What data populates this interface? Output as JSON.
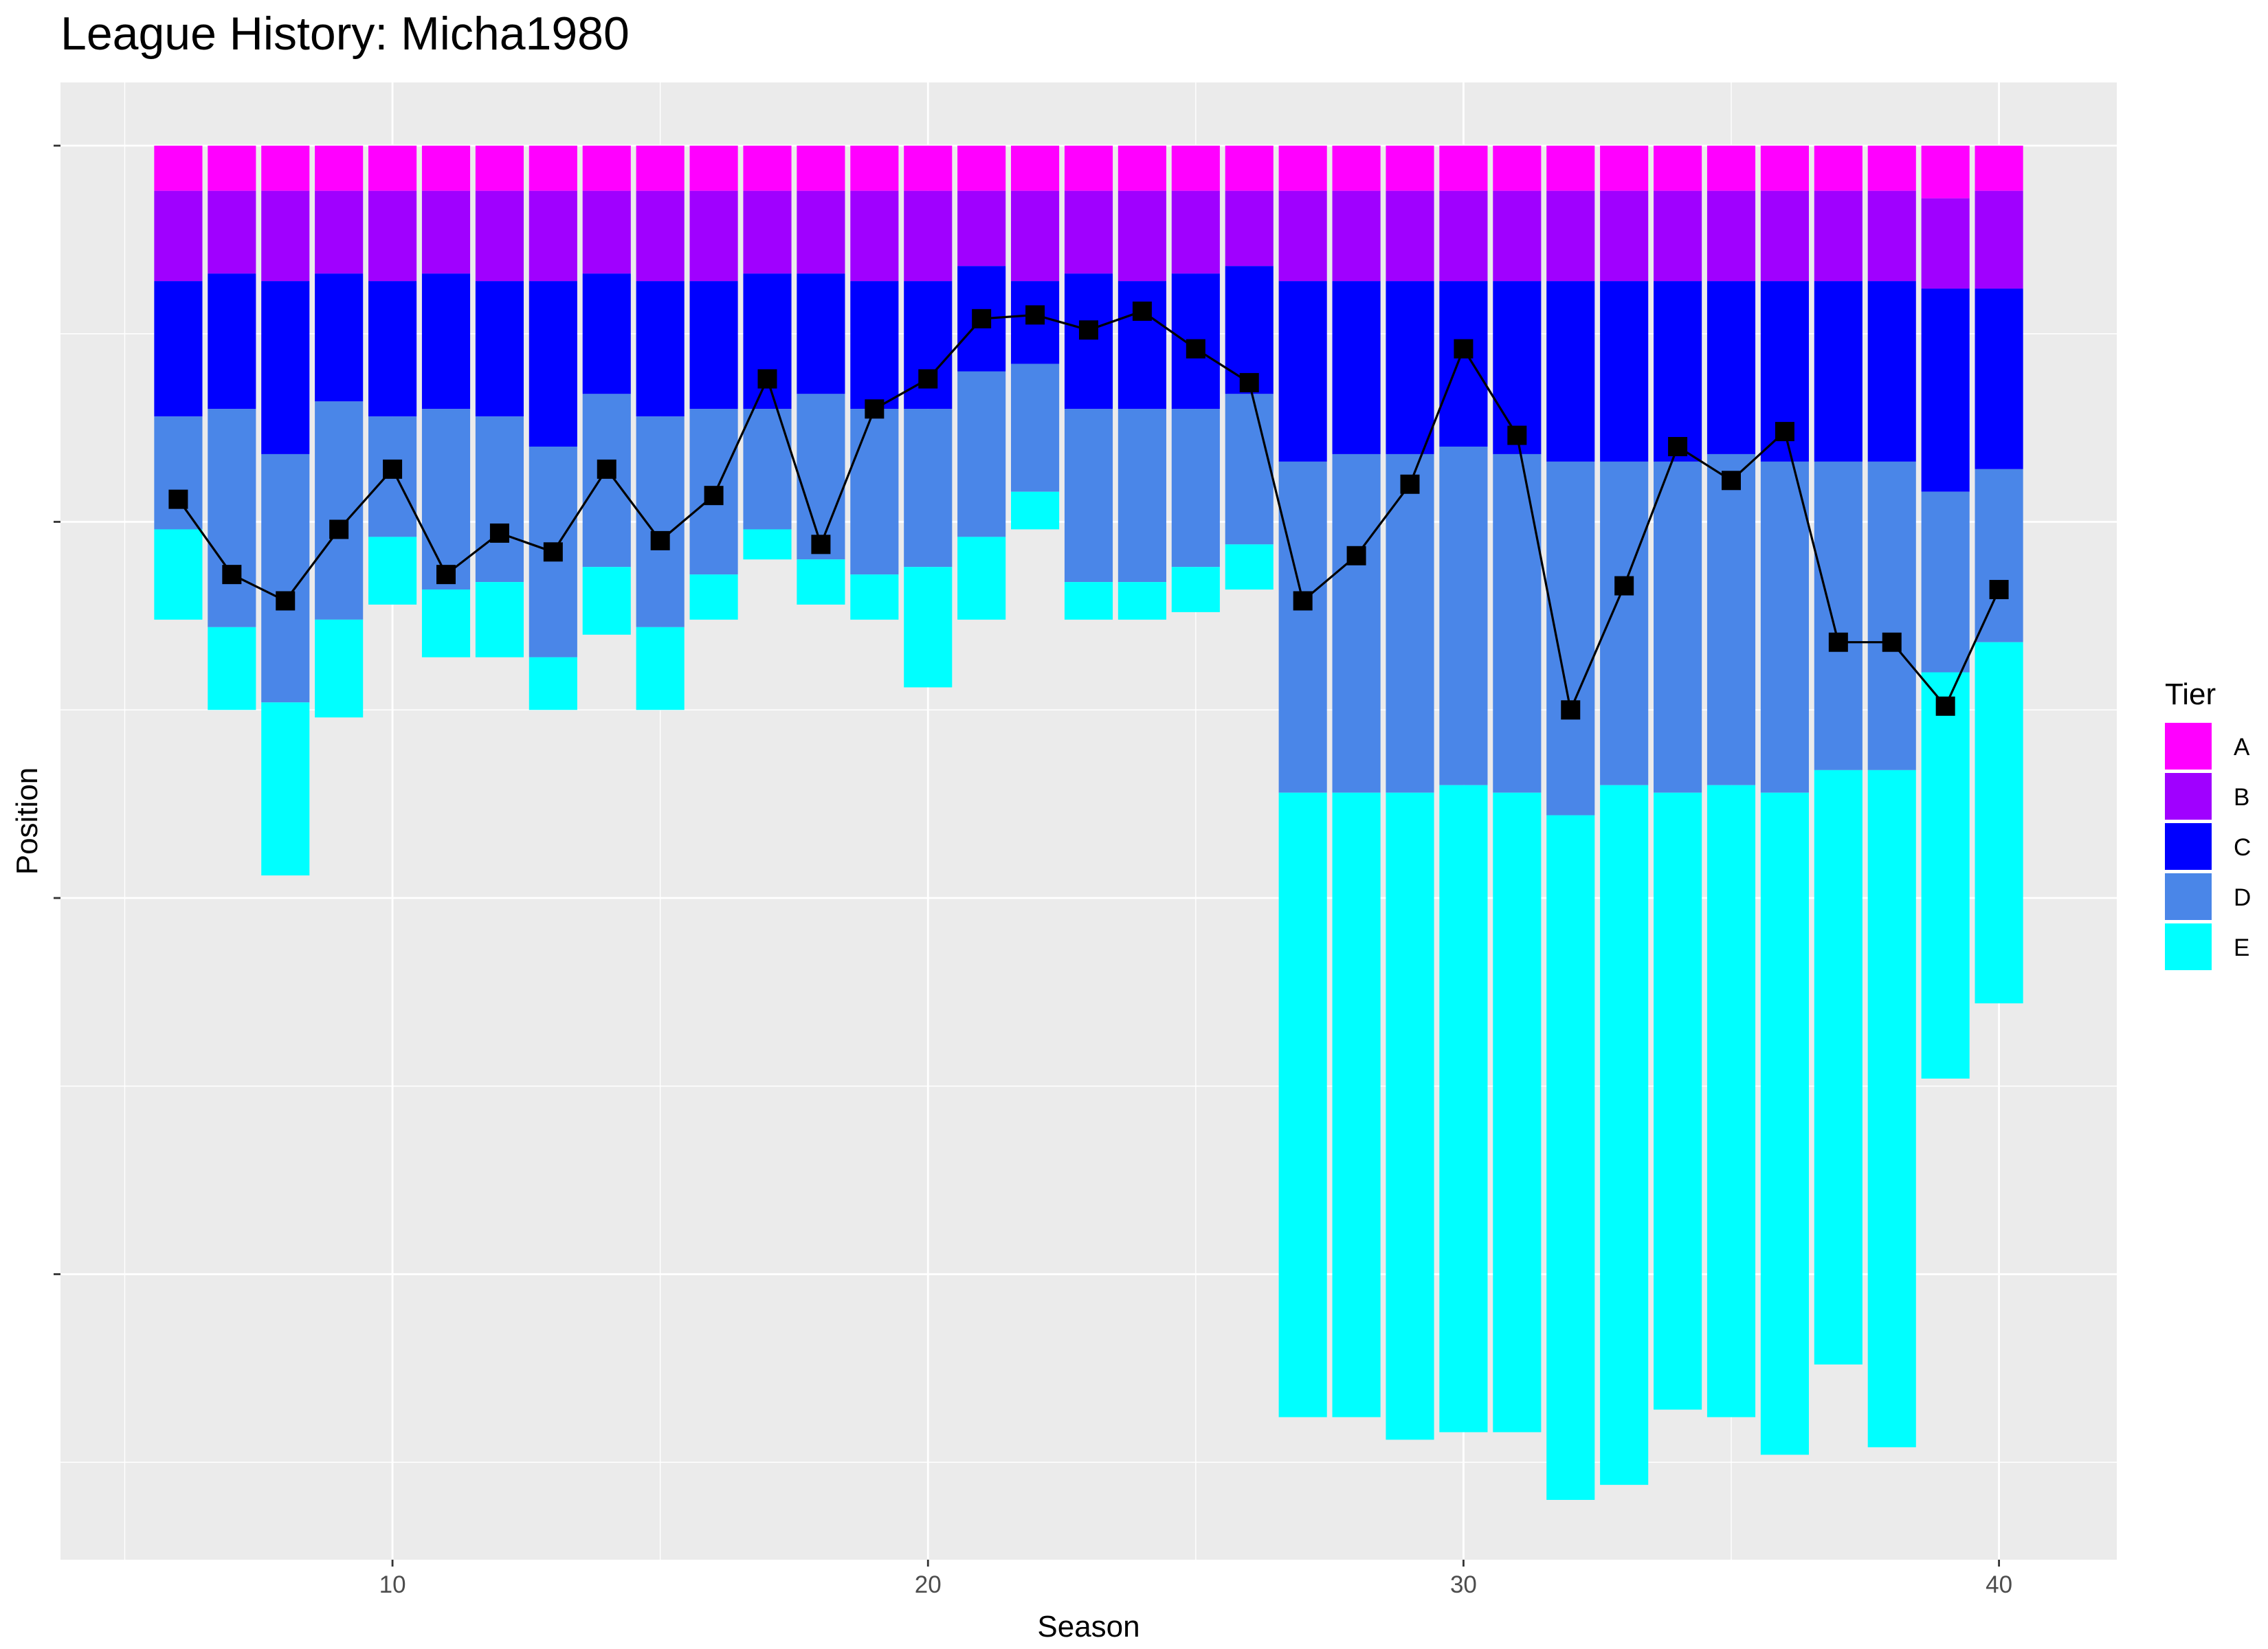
{
  "chart_data": {
    "type": "bar",
    "title": "League History: Micha1980",
    "xlabel": "Season",
    "ylabel": "Position",
    "x_ticks": [
      10,
      20,
      30,
      40
    ],
    "xlim": [
      3.8,
      42.2
    ],
    "ylim": [
      0,
      100
    ],
    "y_reversed": true,
    "grid": true,
    "legend": {
      "title": "Tier",
      "placement": "right"
    },
    "tier_colors": {
      "A": "#ff00ff",
      "B": "#a000ff",
      "C": "#0000ff",
      "D": "#4a86e8",
      "E": "#00ffff"
    },
    "tiers": [
      "A",
      "B",
      "C",
      "D",
      "E"
    ],
    "line_color": "#000000",
    "seasons": [
      6,
      7,
      8,
      9,
      10,
      11,
      12,
      13,
      14,
      15,
      16,
      17,
      18,
      19,
      20,
      21,
      22,
      23,
      24,
      25,
      26,
      27,
      28,
      29,
      30,
      31,
      32,
      33,
      34,
      35,
      36,
      37,
      38,
      39,
      40
    ],
    "segments": [
      {
        "season": 6,
        "A": 6,
        "B": 18,
        "C": 36,
        "D": 51,
        "E": 63
      },
      {
        "season": 7,
        "A": 6,
        "B": 17,
        "C": 35,
        "D": 64,
        "E": 75
      },
      {
        "season": 8,
        "A": 6,
        "B": 18,
        "C": 41,
        "D": 74,
        "E": 97
      },
      {
        "season": 9,
        "A": 6,
        "B": 17,
        "C": 34,
        "D": 63,
        "E": 76
      },
      {
        "season": 10,
        "A": 6,
        "B": 18,
        "C": 36,
        "D": 52,
        "E": 61
      },
      {
        "season": 11,
        "A": 6,
        "B": 17,
        "C": 35,
        "D": 59,
        "E": 68
      },
      {
        "season": 12,
        "A": 6,
        "B": 18,
        "C": 36,
        "D": 58,
        "E": 68
      },
      {
        "season": 13,
        "A": 6,
        "B": 18,
        "C": 40,
        "D": 68,
        "E": 75
      },
      {
        "season": 14,
        "A": 6,
        "B": 17,
        "C": 33,
        "D": 56,
        "E": 65
      },
      {
        "season": 15,
        "A": 6,
        "B": 18,
        "C": 36,
        "D": 64,
        "E": 75
      },
      {
        "season": 16,
        "A": 6,
        "B": 18,
        "C": 35,
        "D": 57,
        "E": 63
      },
      {
        "season": 17,
        "A": 6,
        "B": 17,
        "C": 35,
        "D": 51,
        "E": 55
      },
      {
        "season": 18,
        "A": 6,
        "B": 17,
        "C": 33,
        "D": 55,
        "E": 61
      },
      {
        "season": 19,
        "A": 6,
        "B": 18,
        "C": 35,
        "D": 57,
        "E": 63
      },
      {
        "season": 20,
        "A": 6,
        "B": 18,
        "C": 35,
        "D": 56,
        "E": 72
      },
      {
        "season": 21,
        "A": 6,
        "B": 16,
        "C": 30,
        "D": 52,
        "E": 63
      },
      {
        "season": 22,
        "A": 6,
        "B": 18,
        "C": 29,
        "D": 46,
        "E": 51
      },
      {
        "season": 23,
        "A": 6,
        "B": 17,
        "C": 35,
        "D": 58,
        "E": 63
      },
      {
        "season": 24,
        "A": 6,
        "B": 18,
        "C": 35,
        "D": 58,
        "E": 63
      },
      {
        "season": 25,
        "A": 6,
        "B": 17,
        "C": 35,
        "D": 56,
        "E": 62
      },
      {
        "season": 26,
        "A": 6,
        "B": 16,
        "C": 33,
        "D": 53,
        "E": 59
      },
      {
        "season": 27,
        "A": 6,
        "B": 18,
        "C": 42,
        "D": 86,
        "E": 169
      },
      {
        "season": 28,
        "A": 6,
        "B": 18,
        "C": 41,
        "D": 86,
        "E": 169
      },
      {
        "season": 29,
        "A": 6,
        "B": 18,
        "C": 41,
        "D": 86,
        "E": 172
      },
      {
        "season": 30,
        "A": 6,
        "B": 18,
        "C": 40,
        "D": 85,
        "E": 171
      },
      {
        "season": 31,
        "A": 6,
        "B": 18,
        "C": 41,
        "D": 86,
        "E": 171
      },
      {
        "season": 32,
        "A": 6,
        "B": 18,
        "C": 42,
        "D": 89,
        "E": 180
      },
      {
        "season": 33,
        "A": 6,
        "B": 18,
        "C": 42,
        "D": 85,
        "E": 178
      },
      {
        "season": 34,
        "A": 6,
        "B": 18,
        "C": 42,
        "D": 86,
        "E": 168
      },
      {
        "season": 35,
        "A": 6,
        "B": 18,
        "C": 41,
        "D": 85,
        "E": 169
      },
      {
        "season": 36,
        "A": 6,
        "B": 18,
        "C": 42,
        "D": 86,
        "E": 174
      },
      {
        "season": 37,
        "A": 6,
        "B": 18,
        "C": 42,
        "D": 83,
        "E": 162
      },
      {
        "season": 38,
        "A": 6,
        "B": 18,
        "C": 42,
        "D": 83,
        "E": 173
      },
      {
        "season": 39,
        "A": 7,
        "B": 19,
        "C": 46,
        "D": 70,
        "E": 124
      },
      {
        "season": 40,
        "A": 6,
        "B": 19,
        "C": 43,
        "D": 66,
        "E": 114
      }
    ],
    "series": [
      {
        "values": [
          47,
          57,
          60.5,
          51,
          43,
          57,
          51.5,
          54,
          43,
          52.5,
          46.5,
          31,
          53,
          35,
          31,
          23,
          22.5,
          24.5,
          22,
          27,
          31.5,
          60.5,
          54.5,
          45,
          27,
          38.5,
          75,
          58.5,
          40,
          44.5,
          38,
          66,
          66,
          74.5,
          59
        ]
      }
    ]
  }
}
